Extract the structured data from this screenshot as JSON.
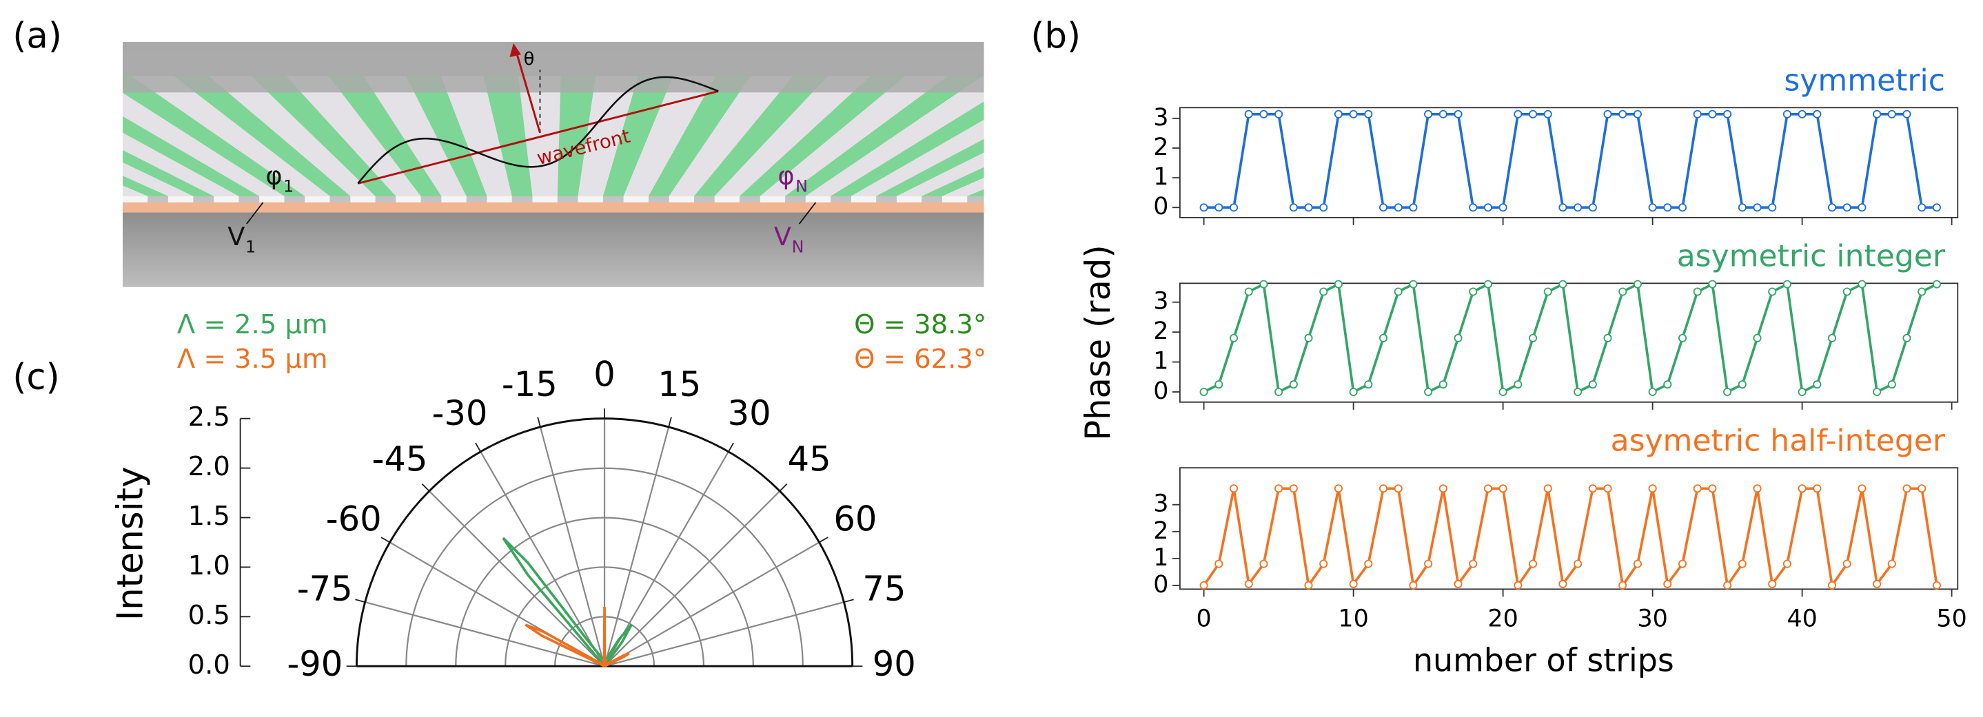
{
  "panel_labels": [
    "(a)",
    "(b)",
    "(c)"
  ],
  "illustration": {
    "theta": "θ",
    "wavefront": "wavefront",
    "phi_1": {
      "symbol": "φ",
      "sub": "1"
    },
    "phi_N": {
      "symbol": "φ",
      "sub": "N"
    },
    "V_1": {
      "symbol": "V",
      "sub": "1"
    },
    "V_N": {
      "symbol": "V",
      "sub": "N"
    }
  },
  "chart_data": [
    {
      "type": "line",
      "title": "symmetric",
      "color": "#1f6fd6",
      "x": [
        0,
        1,
        2,
        3,
        4,
        5,
        6,
        7,
        8,
        9,
        10,
        11,
        12,
        13,
        14,
        15,
        16,
        17,
        18,
        19,
        20,
        21,
        22,
        23,
        24,
        25,
        26,
        27,
        28,
        29,
        30,
        31,
        32,
        33,
        34,
        35,
        36,
        37,
        38,
        39,
        40,
        41,
        42,
        43,
        44,
        45,
        46,
        47,
        48,
        49
      ],
      "values": [
        0,
        0,
        0,
        3.14,
        3.14,
        3.14,
        0,
        0,
        0,
        3.14,
        3.14,
        3.14,
        0,
        0,
        0,
        3.14,
        3.14,
        3.14,
        0,
        0,
        0,
        3.14,
        3.14,
        3.14,
        0,
        0,
        0,
        3.14,
        3.14,
        3.14,
        0,
        0,
        0,
        3.14,
        3.14,
        3.14,
        0,
        0,
        0,
        3.14,
        3.14,
        3.14,
        0,
        0,
        0,
        3.14,
        3.14,
        3.14,
        0,
        0
      ],
      "xlim": [
        -1.6,
        50.4
      ],
      "ylim": [
        -0.34,
        3.36
      ],
      "yticks": [
        0,
        1,
        2,
        3
      ]
    },
    {
      "type": "line",
      "title": "asymetric integer",
      "color": "#35a56a",
      "ylabel": "Phase (rad)",
      "x": [
        0,
        1,
        2,
        3,
        4,
        5,
        6,
        7,
        8,
        9,
        10,
        11,
        12,
        13,
        14,
        15,
        16,
        17,
        18,
        19,
        20,
        21,
        22,
        23,
        24,
        25,
        26,
        27,
        28,
        29,
        30,
        31,
        32,
        33,
        34,
        35,
        36,
        37,
        38,
        39,
        40,
        41,
        42,
        43,
        44,
        45,
        46,
        47,
        48,
        49
      ],
      "values": [
        0,
        0.25,
        1.8,
        3.35,
        3.6,
        0,
        0.25,
        1.8,
        3.35,
        3.6,
        0,
        0.25,
        1.8,
        3.35,
        3.6,
        0,
        0.25,
        1.8,
        3.35,
        3.6,
        0,
        0.25,
        1.8,
        3.35,
        3.6,
        0,
        0.25,
        1.8,
        3.35,
        3.6,
        0,
        0.25,
        1.8,
        3.35,
        3.6,
        0,
        0.25,
        1.8,
        3.35,
        3.6,
        0,
        0.25,
        1.8,
        3.35,
        3.6,
        0,
        0.25,
        1.8,
        3.35,
        3.6
      ],
      "xlim": [
        -1.6,
        50.4
      ],
      "ylim": [
        -0.34,
        3.63
      ],
      "yticks": [
        0,
        1,
        2,
        3
      ]
    },
    {
      "type": "line",
      "title": "asymetric half-integer",
      "color": "#f37321",
      "xlabel": "number of strips",
      "x": [
        0,
        1,
        2,
        3,
        4,
        5,
        6,
        7,
        8,
        9,
        10,
        11,
        12,
        13,
        14,
        15,
        16,
        17,
        18,
        19,
        20,
        21,
        22,
        23,
        24,
        25,
        26,
        27,
        28,
        29,
        30,
        31,
        32,
        33,
        34,
        35,
        36,
        37,
        38,
        39,
        40,
        41,
        42,
        43,
        44,
        45,
        46,
        47,
        48,
        49
      ],
      "values": [
        0,
        0.8,
        3.6,
        0.05,
        0.8,
        3.6,
        3.6,
        0,
        0.8,
        3.6,
        0.05,
        0.8,
        3.6,
        3.6,
        0,
        0.8,
        3.6,
        0.05,
        0.8,
        3.6,
        3.6,
        0,
        0.8,
        3.6,
        0.05,
        0.8,
        3.6,
        3.6,
        0,
        0.8,
        3.6,
        0.05,
        0.8,
        3.6,
        3.6,
        0,
        0.8,
        3.6,
        0.05,
        0.8,
        3.6,
        3.6,
        0,
        0.8,
        3.6,
        0.05,
        0.8,
        3.6,
        3.6,
        0
      ],
      "xlim": [
        -1.6,
        50.4
      ],
      "ylim": [
        -0.14,
        4.37
      ],
      "xticks": [
        0,
        10,
        20,
        30,
        40,
        50
      ],
      "yticks": [
        0,
        1,
        2,
        3
      ]
    },
    {
      "type": "polar",
      "ylabel": "Intensity",
      "thetalim": [
        -90,
        90
      ],
      "thetaticks": [
        -90,
        -75,
        -60,
        -45,
        -30,
        -15,
        0,
        15,
        30,
        45,
        60,
        75,
        90
      ],
      "rlim": [
        0,
        2.5
      ],
      "rticks": [
        {
          "value": 0,
          "label": "0.0"
        },
        0.5,
        {
          "value": 1,
          "label": "1.0"
        },
        1.5,
        {
          "value": 2,
          "label": "2.0"
        },
        2.5
      ],
      "series": [
        {
          "name": "Λ = 2.5 µm",
          "color": "#3aa65a",
          "peak_label": "Θ = 38.3°",
          "peak_label_color": "#2a8a1e",
          "theta": [
            -90,
            -44,
            -40,
            -38.3,
            -36.5,
            -33,
            -20,
            0,
            20,
            28,
            33,
            36,
            40,
            90
          ],
          "values": [
            0,
            0,
            1.2,
            1.65,
            1.3,
            0.3,
            0.1,
            0.05,
            0.1,
            0.3,
            0.5,
            0.3,
            0,
            0
          ]
        },
        {
          "name": "Λ = 3.5 µm",
          "color": "#f07020",
          "peak_label": "Θ = 62.3°",
          "peak_label_color": "#f07020",
          "theta": [
            -90,
            -66,
            -64,
            -62.3,
            -60.5,
            -58,
            -30,
            -2,
            0,
            2,
            30,
            58,
            60.5,
            62.3,
            64,
            66,
            90
          ],
          "values": [
            0,
            0,
            0.7,
            0.9,
            0.7,
            0.1,
            0.02,
            0.1,
            0.6,
            0.1,
            0.02,
            0.08,
            0.22,
            0.28,
            0.22,
            0,
            0
          ]
        }
      ]
    }
  ]
}
